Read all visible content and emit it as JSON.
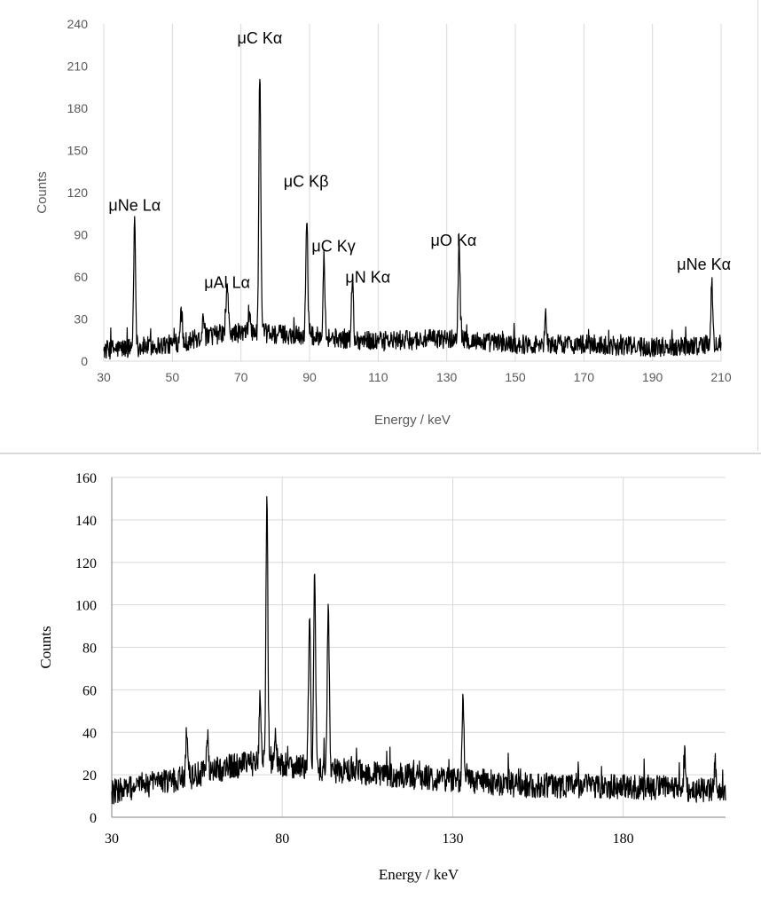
{
  "colors": {
    "trace": "#000000",
    "grid": "#d9d9d9",
    "axis_text_top": "#595959",
    "axis_text_bottom": "#000000"
  },
  "chart_data": [
    {
      "type": "line",
      "xlabel": "Energy / keV",
      "ylabel": "Counts",
      "xlim": [
        30,
        210
      ],
      "ylim": [
        0,
        240
      ],
      "x_ticks": [
        "30",
        "50",
        "70",
        "90",
        "110",
        "130",
        "150",
        "170",
        "190",
        "210"
      ],
      "y_ticks": [
        "0",
        "30",
        "60",
        "90",
        "120",
        "150",
        "180",
        "210",
        "240"
      ],
      "grid": "vertical",
      "baseline": [
        [
          30,
          8
        ],
        [
          50,
          12
        ],
        [
          65,
          20
        ],
        [
          75,
          20
        ],
        [
          90,
          18
        ],
        [
          110,
          14
        ],
        [
          130,
          16
        ],
        [
          150,
          12
        ],
        [
          170,
          12
        ],
        [
          190,
          10
        ],
        [
          210,
          12
        ]
      ],
      "noise": 7,
      "series": [
        {
          "peaks": [
            {
              "x": 39,
              "y": 101
            },
            {
              "x": 52.5,
              "y": 38
            },
            {
              "x": 59,
              "y": 35
            },
            {
              "x": 66,
              "y": 56
            },
            {
              "x": 72.5,
              "y": 37
            },
            {
              "x": 75.5,
              "y": 208
            },
            {
              "x": 89.2,
              "y": 103
            },
            {
              "x": 94.2,
              "y": 76
            },
            {
              "x": 102.5,
              "y": 59
            },
            {
              "x": 133.6,
              "y": 88
            },
            {
              "x": 158.8,
              "y": 32
            },
            {
              "x": 207.3,
              "y": 54
            }
          ]
        }
      ],
      "annotations": [
        {
          "text": "μNe Lα",
          "x": 39,
          "y": 107
        },
        {
          "text": "μAl Lα",
          "x": 66,
          "y": 52
        },
        {
          "text": "μC Kα",
          "x": 75.5,
          "y": 226
        },
        {
          "text": "μC Kβ",
          "x": 89,
          "y": 124
        },
        {
          "text": "μC Kγ",
          "x": 97,
          "y": 78
        },
        {
          "text": "μN Kα",
          "x": 107,
          "y": 56
        },
        {
          "text": "μO Kα",
          "x": 132,
          "y": 82
        },
        {
          "text": "μNe Kα",
          "x": 205,
          "y": 65
        }
      ]
    },
    {
      "type": "line",
      "xlabel": "Energy / keV",
      "ylabel": "Counts",
      "xlim": [
        30,
        210
      ],
      "ylim": [
        0,
        160
      ],
      "x_ticks": [
        "30",
        "80",
        "130",
        "180"
      ],
      "y_ticks": [
        "0",
        "20",
        "40",
        "60",
        "80",
        "100",
        "120",
        "140",
        "160"
      ],
      "grid": "both",
      "baseline": [
        [
          30,
          12
        ],
        [
          50,
          18
        ],
        [
          65,
          24
        ],
        [
          75,
          26
        ],
        [
          90,
          23
        ],
        [
          110,
          20
        ],
        [
          130,
          18
        ],
        [
          150,
          15
        ],
        [
          170,
          15
        ],
        [
          190,
          14
        ],
        [
          210,
          12
        ]
      ],
      "noise": 6,
      "series": [
        {
          "peaks": [
            {
              "x": 52,
              "y": 43
            },
            {
              "x": 58,
              "y": 38
            },
            {
              "x": 73.5,
              "y": 57
            },
            {
              "x": 75.5,
              "y": 150
            },
            {
              "x": 78,
              "y": 38
            },
            {
              "x": 88,
              "y": 96
            },
            {
              "x": 89.5,
              "y": 115
            },
            {
              "x": 93.5,
              "y": 99
            },
            {
              "x": 133,
              "y": 54
            },
            {
              "x": 198,
              "y": 28
            },
            {
              "x": 207,
              "y": 24
            }
          ]
        }
      ]
    }
  ]
}
